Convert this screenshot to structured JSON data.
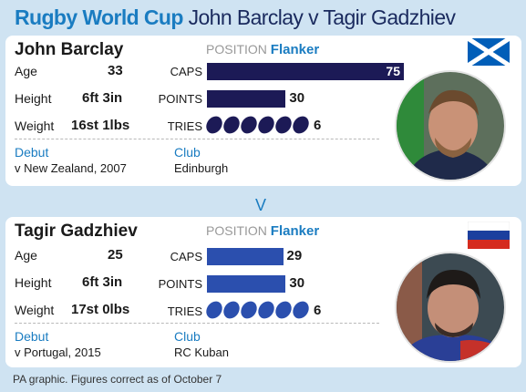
{
  "title": {
    "bold": "Rugby World Cup",
    "rest": "John Barclay v Tagir Gadzhiev"
  },
  "labels": {
    "position": "POSITION",
    "age": "Age",
    "height": "Height",
    "weight": "Weight",
    "caps": "CAPS",
    "points": "POINTS",
    "tries": "TRIES",
    "debut": "Debut",
    "club": "Club"
  },
  "players": [
    {
      "name": "John Barclay",
      "position": "Flanker",
      "age": "33",
      "height": "6ft 3in",
      "weight": "16st 1lbs",
      "caps": 75,
      "points": 30,
      "tries": 6,
      "caps_text": "75",
      "points_text": "30",
      "tries_text": "6",
      "debut": "v New Zealand, 2007",
      "club": "Edinburgh",
      "flag_icon": "scotland-flag-icon"
    },
    {
      "name": "Tagir Gadzhiev",
      "position": "Flanker",
      "age": "25",
      "height": "6ft 3in",
      "weight": "17st 0lbs",
      "caps": 29,
      "points": 30,
      "tries": 6,
      "caps_text": "29",
      "points_text": "30",
      "tries_text": "6",
      "debut": "v Portugal, 2015",
      "club": "RC Kuban",
      "flag_icon": "russia-flag-icon"
    }
  ],
  "vs": "V",
  "footer": "PA graphic. Figures correct as of October 7",
  "colors": {
    "accent": "#1a7cc1",
    "bar_player1": "#1c1a56",
    "bar_player2": "#2b4fae",
    "background": "#cfe3f2"
  }
}
